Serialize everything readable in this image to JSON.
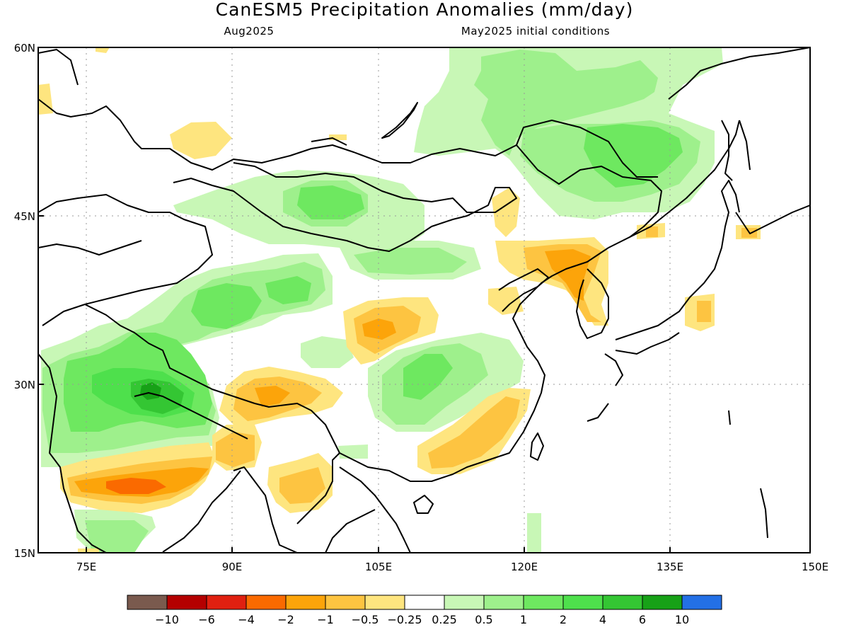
{
  "title": "CanESM5 Precipitation Anomalies (mm/day)",
  "valid_month": "Aug2025",
  "init_conditions": "May2025 initial conditions",
  "lat_labels": [
    "60N",
    "45N",
    "30N",
    "15N"
  ],
  "lon_labels": [
    "75E",
    "90E",
    "105E",
    "120E",
    "135E",
    "150E"
  ],
  "colorbar": {
    "labels": [
      "−10",
      "−6",
      "−4",
      "−2",
      "−1",
      "−0.5",
      "−0.25",
      "0.25",
      "0.5",
      "1",
      "2",
      "4",
      "6",
      "10"
    ],
    "colors": [
      "#7a5a4e",
      "#b40000",
      "#e02010",
      "#fa6a00",
      "#fca40a",
      "#fdc441",
      "#fee57f",
      "#ffffff",
      "#c8f7b6",
      "#9ef08c",
      "#6ee860",
      "#4ee04c",
      "#34c633",
      "#17a117",
      "#2370e6"
    ]
  },
  "map": {
    "lon_range": [
      69,
      150
    ],
    "lat_range": [
      15,
      60
    ],
    "palette": {
      "neg2": "#fa6a00",
      "neg1": "#fca40a",
      "neg05": "#fdc441",
      "neg025": "#fee57f",
      "pos025": "#c8f7b6",
      "pos05": "#9ef08c",
      "pos1": "#6ee860",
      "pos2": "#4ee04c",
      "pos4": "#34c633",
      "pos6": "#17a117"
    }
  }
}
